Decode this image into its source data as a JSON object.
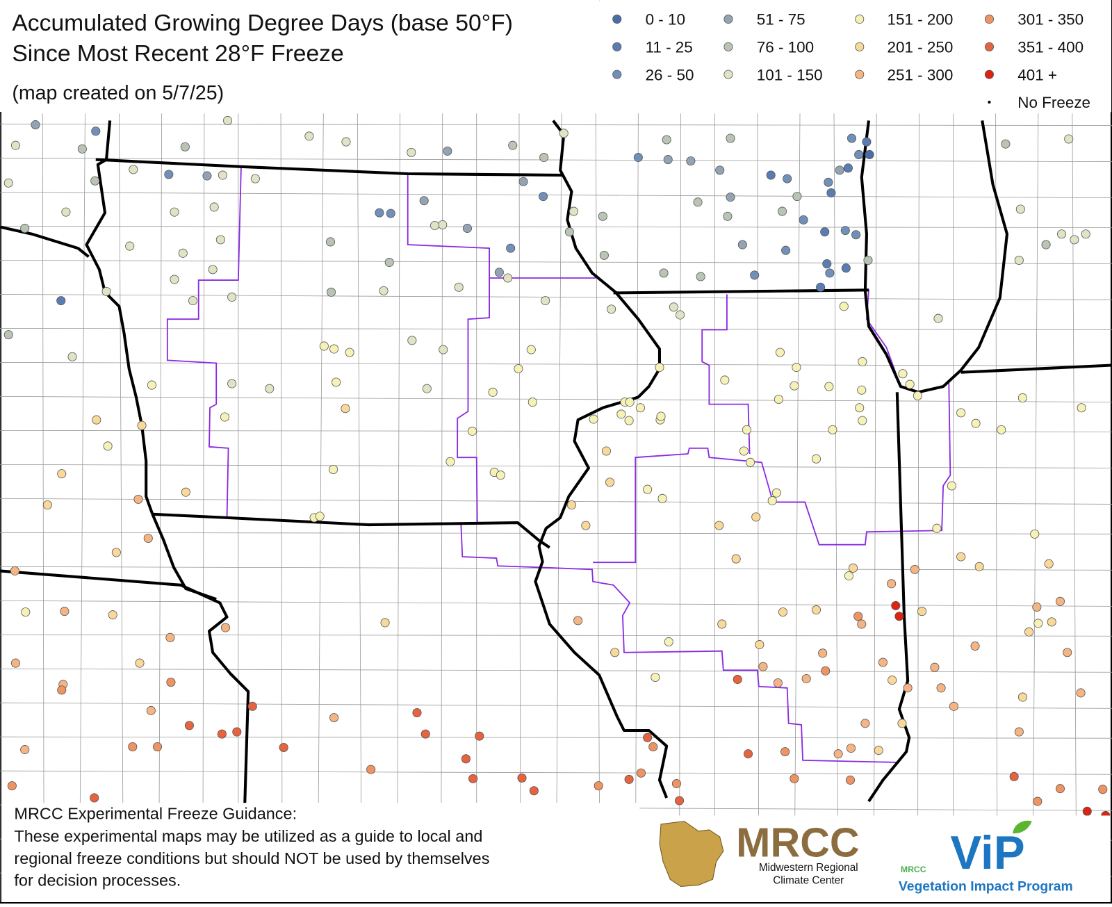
{
  "title_lines": [
    "Accumulated Growing Degree Days (base 50°F)",
    "Since Most Recent 28°F Freeze"
  ],
  "subtitle": "(map created on 5/7/25)",
  "legend": [
    {
      "label": "0 - 10",
      "color": "#4a6ca8"
    },
    {
      "label": "11 - 25",
      "color": "#5b7cb3"
    },
    {
      "label": "26 - 50",
      "color": "#7190b8"
    },
    {
      "label": "51 - 75",
      "color": "#93a3b3"
    },
    {
      "label": "76 - 100",
      "color": "#b9c4b4"
    },
    {
      "label": "101 - 150",
      "color": "#e0e4c4"
    },
    {
      "label": "151 - 200",
      "color": "#f6f1b6"
    },
    {
      "label": "201 - 250",
      "color": "#f8d99a"
    },
    {
      "label": "251 - 300",
      "color": "#f4b483"
    },
    {
      "label": "301 - 350",
      "color": "#ef9363"
    },
    {
      "label": "351 - 400",
      "color": "#e6633f"
    },
    {
      "label": "401 +",
      "color": "#dc2410"
    },
    {
      "label": "No Freeze",
      "color": "#000000"
    }
  ],
  "footer": {
    "heading": "MRCC Experimental Freeze Guidance:",
    "lines": [
      "These experimental maps may be utilized as a guide to local and",
      "regional freeze conditions but should NOT be used by themselves",
      "for decision processes."
    ]
  },
  "logos": {
    "mrcc": "MRCC",
    "mrcc_name_lines": [
      "Midwestern Regional",
      "Climate Center"
    ],
    "vip_small": "MRCC",
    "vip": "ViP",
    "vip_name": "Vegetation Impact Program"
  }
}
